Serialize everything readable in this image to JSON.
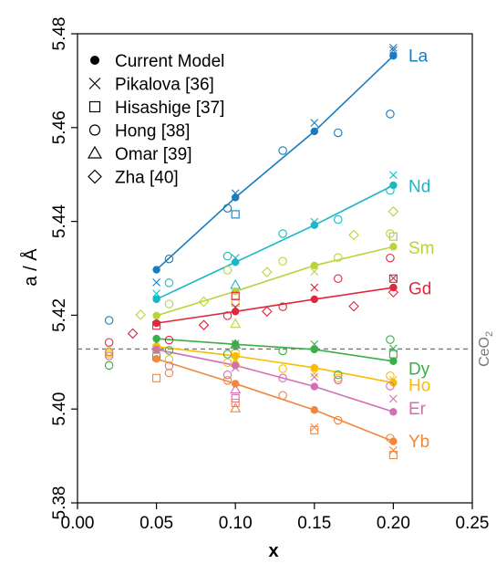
{
  "chart_data": {
    "type": "scatter",
    "title": "",
    "xlabel": "x",
    "ylabel": "a / Å",
    "xlim": [
      0.0,
      0.25
    ],
    "ylim": [
      5.38,
      5.48
    ],
    "xticks": [
      "0.00",
      "0.05",
      "0.10",
      "0.15",
      "0.20",
      "0.25"
    ],
    "yticks": [
      "5.38",
      "5.40",
      "5.42",
      "5.44",
      "5.46",
      "5.48"
    ],
    "xtick_values": [
      0.0,
      0.05,
      0.1,
      0.15,
      0.2,
      0.25
    ],
    "ytick_values": [
      5.38,
      5.4,
      5.42,
      5.44,
      5.46,
      5.48
    ],
    "grid": false,
    "legend_position": "top-left",
    "legend": [
      {
        "label": "Current Model",
        "marker": "filled-circle"
      },
      {
        "label": "Pikalova [36]",
        "marker": "cross"
      },
      {
        "label": "Hisashige [37]",
        "marker": "square"
      },
      {
        "label": "Hong [38]",
        "marker": "circle"
      },
      {
        "label": "Omar [39]",
        "marker": "triangle"
      },
      {
        "label": "Zha [40]",
        "marker": "diamond"
      }
    ],
    "reference_line": {
      "label": "CeO2",
      "label_main": "CeO",
      "label_sub": "2",
      "y": 5.4128,
      "color": "#777777"
    },
    "series": [
      {
        "name": "La",
        "color": "#1a7bbf",
        "model": [
          [
            0.05,
            5.4297
          ],
          [
            0.1,
            5.4451
          ],
          [
            0.15,
            5.4592
          ],
          [
            0.2,
            5.4753
          ]
        ],
        "pikalova": [
          [
            0.05,
            5.427
          ],
          [
            0.1,
            5.446
          ],
          [
            0.15,
            5.461
          ],
          [
            0.2,
            5.477
          ],
          [
            0.2,
            5.4765
          ]
        ],
        "hisashige": [
          [
            0.1,
            5.4415
          ]
        ],
        "hong": [
          [
            0.02,
            5.4189
          ],
          [
            0.058,
            5.432
          ],
          [
            0.095,
            5.4428
          ],
          [
            0.13,
            5.4551
          ],
          [
            0.165,
            5.4589
          ],
          [
            0.198,
            5.4629
          ]
        ],
        "omar": [],
        "zha": []
      },
      {
        "name": "Nd",
        "color": "#1ab8c4",
        "model": [
          [
            0.05,
            5.4234
          ],
          [
            0.1,
            5.4313
          ],
          [
            0.15,
            5.4392
          ],
          [
            0.2,
            5.4477
          ]
        ],
        "pikalova": [
          [
            0.05,
            5.4246
          ],
          [
            0.1,
            5.4322
          ],
          [
            0.15,
            5.4399
          ],
          [
            0.2,
            5.4499
          ]
        ],
        "hisashige": [
          [
            0.2,
            5.4368
          ]
        ],
        "hong": [
          [
            0.058,
            5.4269
          ],
          [
            0.095,
            5.4326
          ],
          [
            0.13,
            5.4374
          ],
          [
            0.165,
            5.4404
          ],
          [
            0.198,
            5.4466
          ]
        ],
        "omar": [
          [
            0.1,
            5.4265
          ]
        ],
        "zha": []
      },
      {
        "name": "Sm",
        "color": "#b9d43a",
        "model": [
          [
            0.05,
            5.4199
          ],
          [
            0.1,
            5.4251
          ],
          [
            0.15,
            5.4306
          ],
          [
            0.2,
            5.4346
          ]
        ],
        "pikalova": [
          [
            0.15,
            5.4293
          ]
        ],
        "hisashige": [
          [
            0.1,
            5.4227
          ],
          [
            0.2,
            5.4368
          ]
        ],
        "hong": [
          [
            0.02,
            5.4123
          ],
          [
            0.058,
            5.4224
          ],
          [
            0.095,
            5.4296
          ],
          [
            0.13,
            5.4315
          ],
          [
            0.165,
            5.4323
          ],
          [
            0.198,
            5.4374
          ]
        ],
        "omar": [
          [
            0.1,
            5.4182
          ]
        ],
        "zha": [
          [
            0.04,
            5.4201
          ],
          [
            0.08,
            5.4229
          ],
          [
            0.12,
            5.4292
          ],
          [
            0.175,
            5.4371
          ],
          [
            0.2,
            5.4421
          ]
        ]
      },
      {
        "name": "Gd",
        "color": "#e0283c",
        "model": [
          [
            0.05,
            5.4183
          ],
          [
            0.1,
            5.4208
          ],
          [
            0.15,
            5.4234
          ],
          [
            0.2,
            5.4259
          ]
        ],
        "pikalova": [
          [
            0.1,
            5.4217
          ],
          [
            0.15,
            5.4259
          ],
          [
            0.2,
            5.4279
          ]
        ],
        "hisashige": [
          [
            0.05,
            5.4178
          ],
          [
            0.1,
            5.4241
          ],
          [
            0.2,
            5.4278
          ]
        ],
        "hong": [
          [
            0.02,
            5.4142
          ],
          [
            0.058,
            5.4147
          ],
          [
            0.095,
            5.4199
          ],
          [
            0.13,
            5.4218
          ],
          [
            0.165,
            5.4278
          ],
          [
            0.198,
            5.4322
          ]
        ],
        "omar": [],
        "zha": [
          [
            0.035,
            5.4161
          ],
          [
            0.08,
            5.4179
          ],
          [
            0.12,
            5.4208
          ],
          [
            0.175,
            5.4219
          ],
          [
            0.2,
            5.4249
          ]
        ]
      },
      {
        "name": "Dy",
        "color": "#3cae48",
        "model": [
          [
            0.05,
            5.415
          ],
          [
            0.1,
            5.4138
          ],
          [
            0.15,
            5.4127
          ],
          [
            0.2,
            5.4102
          ]
        ],
        "pikalova": [
          [
            0.05,
            5.4143
          ],
          [
            0.1,
            5.4139
          ],
          [
            0.15,
            5.4138
          ],
          [
            0.2,
            5.4129
          ]
        ],
        "hisashige": [
          [
            0.05,
            5.4112
          ],
          [
            0.2,
            5.4117
          ]
        ],
        "hong": [
          [
            0.02,
            5.4093
          ],
          [
            0.058,
            5.4125
          ],
          [
            0.095,
            5.4117
          ],
          [
            0.13,
            5.4124
          ],
          [
            0.165,
            5.4073
          ],
          [
            0.198,
            5.4148
          ]
        ],
        "omar": [
          [
            0.1,
            5.4138
          ]
        ],
        "zha": []
      },
      {
        "name": "Ho",
        "color": "#f7be00",
        "model": [
          [
            0.05,
            5.4133
          ],
          [
            0.1,
            5.4113
          ],
          [
            0.15,
            5.4088
          ],
          [
            0.2,
            5.4056
          ]
        ],
        "pikalova": [
          [
            0.1,
            5.4103
          ],
          [
            0.15,
            5.4076
          ],
          [
            0.2,
            5.4062
          ]
        ],
        "hisashige": [
          [
            0.05,
            5.4126
          ],
          [
            0.1,
            5.4118
          ]
        ],
        "hong": [
          [
            0.02,
            5.4117
          ],
          [
            0.058,
            5.4106
          ],
          [
            0.095,
            5.4099
          ],
          [
            0.13,
            5.4086
          ],
          [
            0.165,
            5.4066
          ],
          [
            0.198,
            5.4071
          ]
        ],
        "omar": [
          [
            0.1,
            5.4099
          ]
        ],
        "zha": []
      },
      {
        "name": "Er",
        "color": "#d270b4",
        "model": [
          [
            0.05,
            5.4127
          ],
          [
            0.1,
            5.4093
          ],
          [
            0.15,
            5.4048
          ],
          [
            0.2,
            5.3994
          ]
        ],
        "pikalova": [
          [
            0.1,
            5.4088
          ],
          [
            0.15,
            5.4068
          ],
          [
            0.2,
            5.4022
          ]
        ],
        "hisashige": [
          [
            0.1,
            5.4023
          ]
        ],
        "hong": [
          [
            0.02,
            5.4113
          ],
          [
            0.058,
            5.4092
          ],
          [
            0.095,
            5.4073
          ],
          [
            0.13,
            5.4066
          ],
          [
            0.165,
            5.4062
          ],
          [
            0.198,
            5.4049
          ]
        ],
        "omar": [
          [
            0.1,
            5.4042
          ]
        ],
        "zha": []
      },
      {
        "name": "Yb",
        "color": "#f0873c",
        "model": [
          [
            0.05,
            5.4107
          ],
          [
            0.1,
            5.4054
          ],
          [
            0.15,
            5.3998
          ],
          [
            0.2,
            5.3931
          ]
        ],
        "pikalova": [
          [
            0.15,
            5.3961
          ],
          [
            0.2,
            5.3912
          ]
        ],
        "hisashige": [
          [
            0.05,
            5.4066
          ],
          [
            0.1,
            5.4013
          ],
          [
            0.15,
            5.3955
          ],
          [
            0.2,
            5.3902
          ]
        ],
        "hong": [
          [
            0.02,
            5.4121
          ],
          [
            0.058,
            5.4077
          ],
          [
            0.095,
            5.4061
          ],
          [
            0.13,
            5.4029
          ],
          [
            0.165,
            5.3976
          ],
          [
            0.198,
            5.3938
          ]
        ],
        "omar": [
          [
            0.1,
            5.4002
          ]
        ],
        "zha": []
      }
    ],
    "series_label_positions": [
      {
        "name": "La",
        "y": 5.4754
      },
      {
        "name": "Nd",
        "y": 5.4476
      },
      {
        "name": "Sm",
        "y": 5.4345
      },
      {
        "name": "Gd",
        "y": 5.4258
      },
      {
        "name": "Dy",
        "y": 5.4087
      },
      {
        "name": "Ho",
        "y": 5.4052
      },
      {
        "name": "Er",
        "y": 5.4002
      },
      {
        "name": "Yb",
        "y": 5.3932
      }
    ]
  }
}
